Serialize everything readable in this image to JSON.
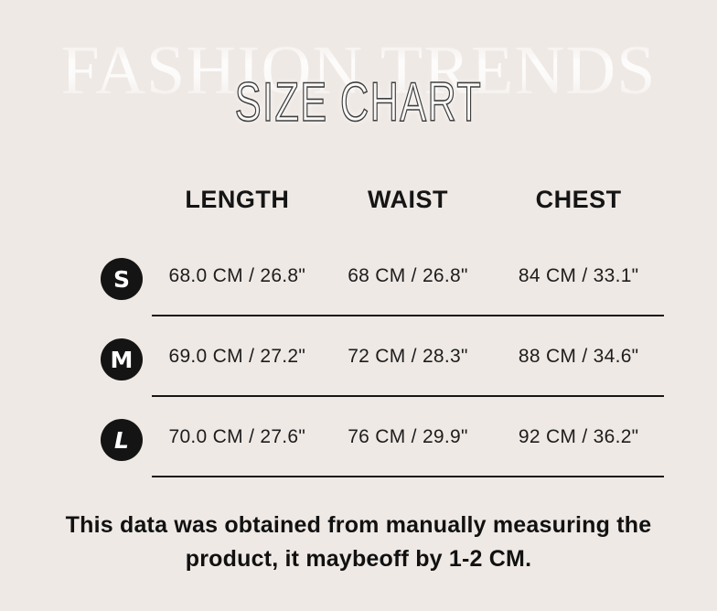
{
  "header": {
    "watermark": "FASHION TRENDS",
    "title": "SIZE CHART"
  },
  "table": {
    "headers": [
      "LENGTH",
      "WAIST",
      "CHEST"
    ],
    "rows": [
      {
        "size": "S",
        "length": "68.0 CM / 26.8\"",
        "waist": "68 CM / 26.8\"",
        "chest": "84 CM / 33.1\""
      },
      {
        "size": "M",
        "length": "69.0 CM / 27.2\"",
        "waist": "72 CM / 28.3\"",
        "chest": "88 CM / 34.6\""
      },
      {
        "size": "L",
        "length": "70.0 CM / 27.6\"",
        "waist": "76 CM / 29.9\"",
        "chest": "92 CM / 36.2\""
      }
    ]
  },
  "footnote": {
    "line1": "This data was obtained from manually measuring the",
    "line2": "product, it maybeoff by 1-2 CM."
  },
  "colors": {
    "background": "#efe9e5",
    "text": "#1c1c1c",
    "badge": "#141414",
    "line": "#161616",
    "watermark": "#ffffff",
    "title_outline": "#3f3f3f"
  }
}
